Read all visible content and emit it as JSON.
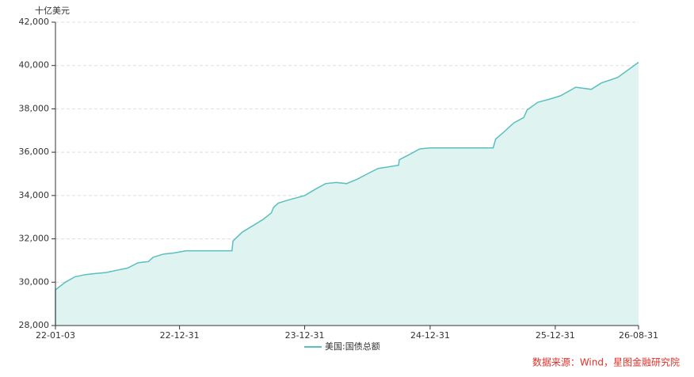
{
  "chart_data": {
    "type": "area",
    "unit_label": "十亿美元",
    "series": [
      {
        "name": "美国:国债总额",
        "color": "#5bbfbf",
        "fill": "#dff3f1",
        "x": [
          "22-01-03",
          "22-02-01",
          "22-03-01",
          "22-04-01",
          "22-05-01",
          "22-06-01",
          "22-07-01",
          "22-08-01",
          "22-09-01",
          "22-10-01",
          "22-10-15",
          "22-11-15",
          "22-12-15",
          "23-01-19",
          "23-06-02",
          "23-06-05",
          "23-07-01",
          "23-08-01",
          "23-09-01",
          "23-09-25",
          "23-10-01",
          "23-10-15",
          "23-11-15",
          "23-12-31",
          "24-02-01",
          "24-03-01",
          "24-04-01",
          "24-05-01",
          "24-06-01",
          "24-07-01",
          "24-08-01",
          "24-09-30",
          "24-10-02",
          "24-11-01",
          "24-12-01",
          "24-12-31",
          "25-07-03",
          "25-07-10",
          "25-08-01",
          "25-09-01",
          "25-09-30",
          "25-10-10",
          "25-11-10",
          "25-12-15",
          "26-01-15",
          "26-03-01",
          "26-04-15",
          "26-05-15",
          "26-07-01",
          "26-08-31"
        ],
        "values": [
          29650,
          30000,
          30250,
          30350,
          30400,
          30450,
          30550,
          30650,
          30900,
          30950,
          31150,
          31300,
          31350,
          31450,
          31450,
          31900,
          32300,
          32600,
          32900,
          33200,
          33450,
          33650,
          33800,
          34000,
          34300,
          34550,
          34600,
          34550,
          34750,
          35000,
          35250,
          35400,
          35650,
          35900,
          36150,
          36200,
          36200,
          36600,
          36900,
          37350,
          37600,
          37950,
          38300,
          38450,
          38600,
          39000,
          38900,
          39200,
          39450,
          40150
        ]
      }
    ],
    "xlim": [
      "22-01-03",
      "26-08-31"
    ],
    "xticks": [
      "22-01-03",
      "22-12-31",
      "23-12-31",
      "24-12-31",
      "25-12-31",
      "26-08-31"
    ],
    "ylim": [
      28000,
      42000
    ],
    "yticks": [
      {
        "value": 28000,
        "label": "28,000"
      },
      {
        "value": 30000,
        "label": "30,000"
      },
      {
        "value": 32000,
        "label": "32,000"
      },
      {
        "value": 34000,
        "label": "34,000"
      },
      {
        "value": 36000,
        "label": "36,000"
      },
      {
        "value": 38000,
        "label": "38,000"
      },
      {
        "value": 40000,
        "label": "40,000"
      },
      {
        "value": 42000,
        "label": "42,000"
      }
    ],
    "grid": true,
    "source": "数据来源：Wind，星图金融研究院"
  }
}
